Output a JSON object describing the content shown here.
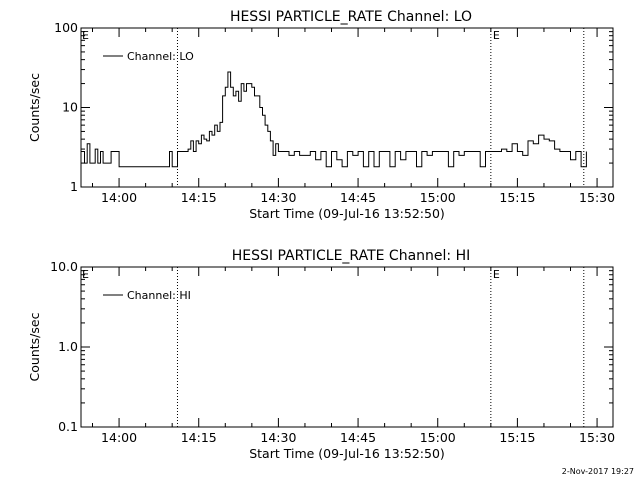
{
  "chart_data": [
    {
      "type": "line",
      "title": "HESSI PARTICLE_RATE Channel: LO",
      "xlabel": "Start Time (09-Jul-16 13:52:50)",
      "ylabel": "Counts/sec",
      "yscale": "log",
      "ylim": [
        1,
        100
      ],
      "xlim": [
        "13:52:50",
        "15:33:00"
      ],
      "x_ticks": [
        "14:00",
        "14:15",
        "14:30",
        "14:45",
        "15:00",
        "15:15",
        "15:30"
      ],
      "y_ticks": [
        "1",
        "10",
        "100"
      ],
      "legend": {
        "placement": "top-left",
        "entries": [
          "Channel: LO"
        ]
      },
      "event_markers": [
        {
          "time": "14:11:00",
          "label": ""
        },
        {
          "time": "15:10:00",
          "label": "E"
        },
        {
          "time": "15:27:30",
          "label": ""
        }
      ],
      "left_marker_label": "E",
      "series": [
        {
          "name": "Channel: LO",
          "x": [
            "13:52:50",
            "13:53:30",
            "13:54:00",
            "13:54:30",
            "13:55:00",
            "13:55:30",
            "13:56:00",
            "13:56:30",
            "13:57:00",
            "13:57:30",
            "13:58:00",
            "13:58:30",
            "14:00:00",
            "14:05:00",
            "14:09:00",
            "14:09:30",
            "14:10:00",
            "14:11:00",
            "14:12:00",
            "14:13:00",
            "14:13:30",
            "14:14:00",
            "14:14:30",
            "14:15:00",
            "14:15:30",
            "14:16:00",
            "14:16:30",
            "14:17:00",
            "14:17:30",
            "14:18:00",
            "14:18:30",
            "14:19:00",
            "14:19:30",
            "14:20:00",
            "14:20:30",
            "14:21:00",
            "14:21:30",
            "14:22:00",
            "14:22:30",
            "14:23:00",
            "14:23:30",
            "14:24:00",
            "14:24:30",
            "14:25:00",
            "14:25:30",
            "14:26:00",
            "14:26:30",
            "14:27:00",
            "14:27:30",
            "14:28:00",
            "14:28:30",
            "14:29:00",
            "14:29:30",
            "14:30:00",
            "14:31:00",
            "14:32:00",
            "14:33:00",
            "14:34:00",
            "14:35:00",
            "14:36:00",
            "14:37:00",
            "14:38:00",
            "14:39:00",
            "14:40:00",
            "14:41:00",
            "14:42:00",
            "14:43:00",
            "14:44:00",
            "14:45:00",
            "14:46:00",
            "14:47:00",
            "14:48:00",
            "14:49:00",
            "14:50:00",
            "14:51:00",
            "14:52:00",
            "14:53:00",
            "14:54:00",
            "14:55:00",
            "14:56:00",
            "14:57:00",
            "14:58:00",
            "14:59:00",
            "15:00:00",
            "15:01:00",
            "15:02:00",
            "15:03:00",
            "15:04:00",
            "15:05:00",
            "15:06:00",
            "15:07:00",
            "15:08:00",
            "15:09:00",
            "15:10:00",
            "15:11:00",
            "15:12:00",
            "15:13:00",
            "15:14:00",
            "15:15:00",
            "15:16:00",
            "15:17:00",
            "15:18:00",
            "15:19:00",
            "15:20:00",
            "15:21:00",
            "15:22:00",
            "15:23:00",
            "15:24:00",
            "15:25:00",
            "15:26:00",
            "15:27:00",
            "15:28:00"
          ],
          "values": [
            2.8,
            2,
            3.5,
            2,
            2,
            3,
            2,
            2.8,
            2,
            2,
            2,
            2.8,
            1.8,
            1.8,
            1.8,
            2.8,
            1.8,
            2.8,
            2.8,
            3,
            3.8,
            2.8,
            3.8,
            3.5,
            4.5,
            4,
            3.8,
            5,
            4.5,
            6,
            5,
            6.5,
            14,
            18,
            28,
            18,
            14,
            16,
            12,
            20,
            16,
            20,
            20,
            18,
            14,
            14,
            10,
            8,
            6,
            5,
            3.8,
            2.5,
            3.5,
            2.8,
            2.8,
            2.5,
            2.8,
            2.5,
            2.5,
            2.8,
            2.2,
            2.8,
            1.8,
            2.8,
            2.2,
            1.8,
            2.8,
            2.5,
            2.8,
            1.8,
            2.8,
            1.8,
            2.8,
            2.8,
            1.8,
            2.8,
            2.2,
            2.8,
            2.8,
            1.8,
            2.8,
            2.5,
            2.8,
            2.8,
            2.8,
            1.8,
            2.8,
            2.5,
            2.8,
            2.8,
            2.8,
            1.8,
            2.8,
            2.8,
            2.8,
            3,
            2.8,
            3.5,
            2.8,
            2.5,
            3.8,
            3.5,
            4.5,
            4,
            3.8,
            3,
            2.8,
            2.8,
            2.2,
            2.8,
            1.8,
            2.8
          ]
        }
      ]
    },
    {
      "type": "line",
      "title": "HESSI PARTICLE_RATE Channel: HI",
      "xlabel": "Start Time (09-Jul-16 13:52:50)",
      "ylabel": "Counts/sec",
      "yscale": "log",
      "ylim": [
        0.1,
        10
      ],
      "xlim": [
        "13:52:50",
        "15:33:00"
      ],
      "x_ticks": [
        "14:00",
        "14:15",
        "14:30",
        "14:45",
        "15:00",
        "15:15",
        "15:30"
      ],
      "y_ticks": [
        "0.1",
        "1.0",
        "10.0"
      ],
      "legend": {
        "placement": "top-left",
        "entries": [
          "Channel: HI"
        ]
      },
      "event_markers": [
        {
          "time": "14:11:00",
          "label": ""
        },
        {
          "time": "15:10:00",
          "label": "E"
        },
        {
          "time": "15:27:30",
          "label": ""
        }
      ],
      "left_marker_label": "E",
      "series": [
        {
          "name": "Channel: HI",
          "x": [],
          "values": []
        }
      ]
    }
  ],
  "footer": {
    "timestamp": "2-Nov-2017 19:27"
  }
}
